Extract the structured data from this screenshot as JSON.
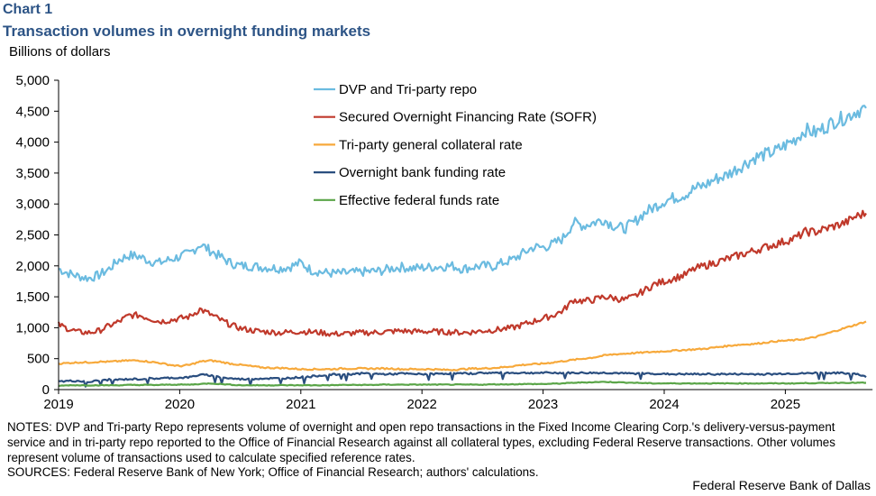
{
  "header": {
    "chart_label": "Chart 1",
    "title": "Transaction volumes in overnight funding markets",
    "y_unit": "Billions of dollars"
  },
  "footer": {
    "notes": "NOTES: DVP and Tri-party Repo represents volume of overnight and open repo transactions in the Fixed Income Clearing Corp.'s delivery-versus-payment service and in tri-party repo reported to the Office of Financial Research against all collateral types, excluding Federal Reserve transactions. Other volumes represent volume of transactions used to calculate specified reference rates.",
    "sources": "SOURCES: Federal Reserve Bank of New York; Office of Financial Research; authors' calculations.",
    "credit": "Federal Reserve Bank of Dallas"
  },
  "chart_data": {
    "type": "line",
    "title": "Transaction volumes in overnight funding markets",
    "xlabel": "",
    "ylabel": "Billions of dollars",
    "ylim": [
      0,
      5000
    ],
    "yticks": [
      0,
      500,
      1000,
      1500,
      2000,
      2500,
      3000,
      3500,
      4000,
      4500,
      5000
    ],
    "ytick_labels": [
      "0",
      "500",
      "1,000",
      "1,500",
      "2,000",
      "2,500",
      "3,000",
      "3,500",
      "4,000",
      "4,500",
      "5,000"
    ],
    "xlim": [
      2019.0,
      2025.72
    ],
    "xticks": [
      2019,
      2020,
      2021,
      2022,
      2023,
      2024,
      2025
    ],
    "xtick_labels": [
      "2019",
      "2020",
      "2021",
      "2022",
      "2023",
      "2024",
      "2025"
    ],
    "x_frequency": "monthly, starting January 2019",
    "grid": false,
    "legend_position": "top-center",
    "series": [
      {
        "name": "DVP and Tri-party repo",
        "color": "#6bbbe0",
        "values": [
          1950,
          1880,
          1830,
          1800,
          1850,
          1950,
          2100,
          2170,
          2150,
          2080,
          2050,
          2100,
          2150,
          2200,
          2350,
          2250,
          2150,
          2050,
          2000,
          2000,
          1980,
          1970,
          1960,
          1990,
          2050,
          1930,
          1900,
          1880,
          1880,
          1890,
          1900,
          1910,
          1920,
          1960,
          1980,
          1960,
          1970,
          1980,
          1990,
          2000,
          1950,
          1980,
          2000,
          1990,
          2050,
          2100,
          2200,
          2300,
          2300,
          2350,
          2450,
          2700,
          2650,
          2700,
          2750,
          2650,
          2600,
          2700,
          2850,
          2950,
          3050,
          3100,
          3150,
          3250,
          3300,
          3400,
          3450,
          3550,
          3650,
          3750,
          3800,
          3850,
          3950,
          4050,
          4200,
          4150,
          4250,
          4350,
          4400,
          4500,
          4550
        ]
      },
      {
        "name": "Secured Overnight Financing Rate (SOFR)",
        "color": "#c0392b",
        "values": [
          1050,
          980,
          930,
          920,
          950,
          1030,
          1100,
          1200,
          1200,
          1150,
          1100,
          1120,
          1150,
          1180,
          1300,
          1220,
          1130,
          1050,
          990,
          960,
          940,
          930,
          920,
          930,
          940,
          930,
          920,
          900,
          900,
          910,
          920,
          920,
          930,
          940,
          950,
          940,
          940,
          940,
          930,
          930,
          920,
          930,
          950,
          960,
          980,
          1000,
          1050,
          1100,
          1150,
          1200,
          1280,
          1450,
          1430,
          1450,
          1500,
          1480,
          1450,
          1500,
          1600,
          1700,
          1750,
          1800,
          1850,
          1950,
          2000,
          2050,
          2100,
          2150,
          2200,
          2250,
          2300,
          2350,
          2400,
          2450,
          2550,
          2550,
          2600,
          2650,
          2700,
          2800,
          2850
        ]
      },
      {
        "name": "Tri-party general collateral rate",
        "color": "#f7a93b",
        "values": [
          420,
          430,
          440,
          440,
          450,
          450,
          460,
          470,
          470,
          450,
          430,
          400,
          380,
          400,
          450,
          470,
          450,
          420,
          400,
          380,
          360,
          350,
          350,
          340,
          330,
          330,
          330,
          330,
          340,
          340,
          340,
          340,
          340,
          340,
          330,
          330,
          330,
          330,
          320,
          320,
          330,
          340,
          340,
          350,
          360,
          380,
          400,
          410,
          420,
          440,
          460,
          480,
          500,
          520,
          550,
          570,
          580,
          590,
          600,
          610,
          620,
          630,
          640,
          650,
          660,
          680,
          700,
          720,
          730,
          740,
          760,
          780,
          790,
          800,
          820,
          850,
          900,
          950,
          1000,
          1050,
          1100
        ]
      },
      {
        "name": "Overnight bank funding rate",
        "color": "#2a4e7f",
        "values": [
          130,
          140,
          140,
          120,
          150,
          160,
          160,
          170,
          170,
          180,
          180,
          190,
          190,
          200,
          240,
          230,
          200,
          180,
          170,
          170,
          180,
          180,
          180,
          190,
          200,
          210,
          230,
          240,
          250,
          250,
          260,
          260,
          250,
          250,
          260,
          250,
          250,
          250,
          260,
          260,
          260,
          260,
          270,
          270,
          270,
          270,
          270,
          270,
          270,
          270,
          270,
          270,
          270,
          270,
          270,
          270,
          260,
          260,
          260,
          260,
          250,
          250,
          250,
          250,
          250,
          250,
          250,
          250,
          250,
          250,
          250,
          250,
          260,
          260,
          260,
          270,
          270,
          270,
          260,
          260,
          200
        ]
      },
      {
        "name": "Effective federal funds rate",
        "color": "#5aa548",
        "values": [
          60,
          70,
          70,
          70,
          70,
          70,
          70,
          75,
          75,
          75,
          75,
          80,
          80,
          80,
          90,
          100,
          90,
          80,
          70,
          70,
          70,
          70,
          70,
          70,
          70,
          70,
          70,
          70,
          75,
          75,
          75,
          75,
          80,
          80,
          80,
          80,
          80,
          80,
          80,
          80,
          80,
          80,
          80,
          85,
          85,
          85,
          90,
          90,
          90,
          95,
          100,
          110,
          115,
          120,
          125,
          120,
          115,
          110,
          105,
          100,
          100,
          100,
          100,
          100,
          100,
          100,
          100,
          100,
          100,
          100,
          100,
          100,
          100,
          100,
          105,
          105,
          105,
          110,
          110,
          110,
          110
        ]
      }
    ]
  }
}
